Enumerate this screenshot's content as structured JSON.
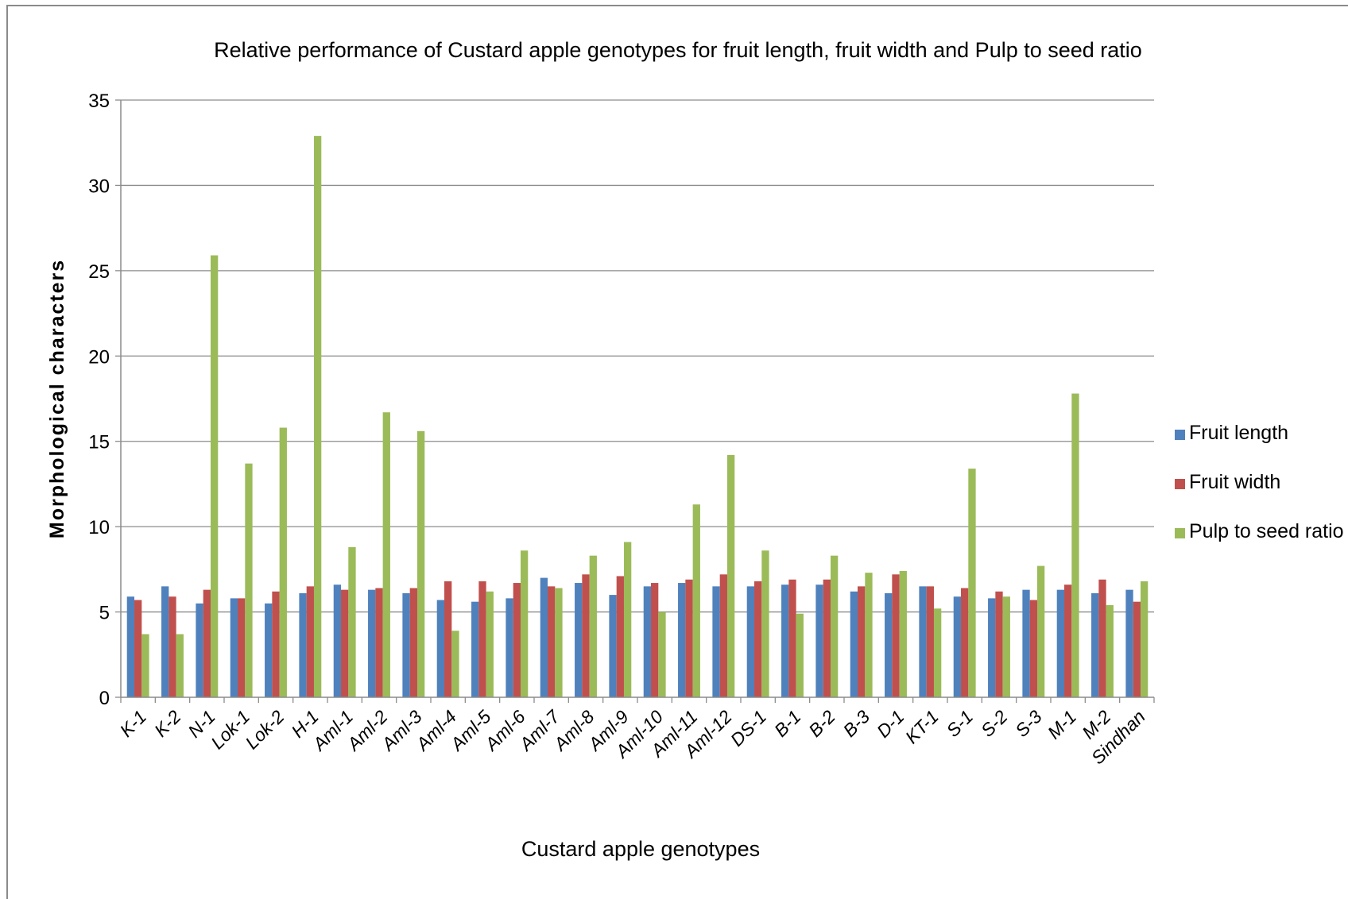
{
  "chart_data": {
    "type": "bar",
    "title": "Relative performance of Custard apple genotypes for fruit length, fruit width and Pulp to seed ratio",
    "xlabel": "Custard apple genotypes",
    "ylabel": "Morphological characters",
    "ylim": [
      0,
      35
    ],
    "yticks": [
      0,
      5,
      10,
      15,
      20,
      25,
      30,
      35
    ],
    "grid": true,
    "legend_position": "right",
    "categories": [
      "K-1",
      "K-2",
      "N-1",
      "Lok-1",
      "Lok-2",
      "H-1",
      "Aml-1",
      "Aml-2",
      "Aml-3",
      "Aml-4",
      "Aml-5",
      "Aml-6",
      "Aml-7",
      "Aml-8",
      "Aml-9",
      "Aml-10",
      "Aml-11",
      "Aml-12",
      "DS-1",
      "B-1",
      "B-2",
      "B-3",
      "D-1",
      "KT-1",
      "S-1",
      "S-2",
      "S-3",
      "M-1",
      "M-2",
      "Sindhan"
    ],
    "series": [
      {
        "name": "Fruit length",
        "color": "#4F81BD",
        "values": [
          5.9,
          6.5,
          5.5,
          5.8,
          5.5,
          6.1,
          6.6,
          6.3,
          6.1,
          5.7,
          5.6,
          5.8,
          7.0,
          6.7,
          6.0,
          6.5,
          6.7,
          6.5,
          6.5,
          6.6,
          6.6,
          6.2,
          6.1,
          6.5,
          5.9,
          5.8,
          6.3,
          6.3,
          6.1,
          6.3
        ]
      },
      {
        "name": "Fruit width",
        "color": "#C0504D",
        "values": [
          5.7,
          5.9,
          6.3,
          5.8,
          6.2,
          6.5,
          6.3,
          6.4,
          6.4,
          6.8,
          6.8,
          6.7,
          6.5,
          7.2,
          7.1,
          6.7,
          6.9,
          7.2,
          6.8,
          6.9,
          6.9,
          6.5,
          7.2,
          6.5,
          6.4,
          6.2,
          5.7,
          6.6,
          6.9,
          5.6
        ]
      },
      {
        "name": "Pulp to seed ratio",
        "color": "#9BBB59",
        "values": [
          3.7,
          3.7,
          25.9,
          13.7,
          15.8,
          32.9,
          8.8,
          16.7,
          15.6,
          3.9,
          6.2,
          8.6,
          6.4,
          8.3,
          9.1,
          5.0,
          11.3,
          14.2,
          8.6,
          4.9,
          8.3,
          7.3,
          7.4,
          5.2,
          13.4,
          5.9,
          7.7,
          17.8,
          5.4,
          6.8
        ]
      }
    ]
  }
}
